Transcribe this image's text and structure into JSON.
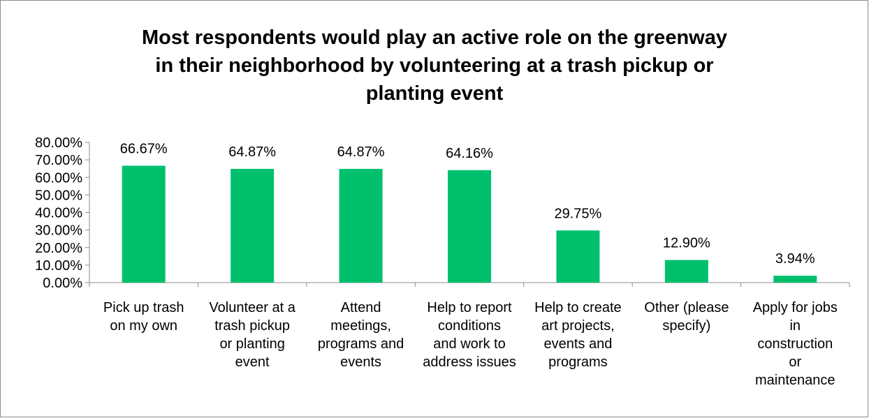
{
  "chart_data": {
    "type": "bar",
    "title": "Most respondents would play an active role on the greenway in their neighborhood by volunteering at a trash pickup or planting event",
    "title_lines": [
      "Most respondents would play an active role on the greenway",
      "in their neighborhood by volunteering at a trash pickup or",
      "planting event"
    ],
    "categories": [
      [
        "Pick up trash",
        "on my own"
      ],
      [
        "Volunteer at a",
        "trash pickup",
        "or planting",
        "event"
      ],
      [
        "Attend",
        "meetings,",
        "programs and",
        "events"
      ],
      [
        "Help to report",
        "conditions",
        "and work to",
        "address issues"
      ],
      [
        "Help to create",
        "art projects,",
        "events and",
        "programs"
      ],
      [
        "Other (please",
        "specify)"
      ],
      [
        "Apply for jobs",
        "in",
        "construction",
        "or",
        "maintenance"
      ]
    ],
    "values": [
      66.67,
      64.87,
      64.87,
      64.16,
      29.75,
      12.9,
      3.94
    ],
    "data_labels": [
      "66.67%",
      "64.87%",
      "64.87%",
      "64.16%",
      "29.75%",
      "12.90%",
      "3.94%"
    ],
    "yticks": [
      "0.00%",
      "10.00%",
      "20.00%",
      "30.00%",
      "40.00%",
      "50.00%",
      "60.00%",
      "70.00%",
      "80.00%"
    ],
    "ylim": [
      0,
      80
    ],
    "xlabel": "",
    "ylabel": "",
    "grid": false,
    "legend": "none",
    "bar_color": "#00c06e",
    "axis_color": "#8c8c8c"
  }
}
